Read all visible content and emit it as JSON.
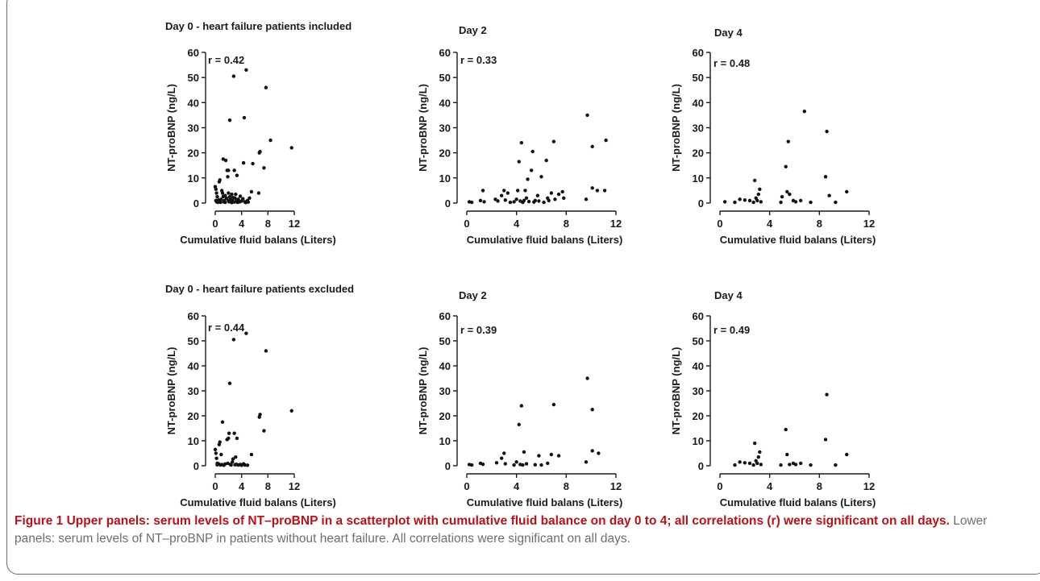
{
  "caption": {
    "figure_label": "Figure 1",
    "bold_text": "Upper panels: serum levels of NT–proBNP in a scatterplot with cumulative fluid balance on day 0 to 4; all correlations (r) were significant on all days.",
    "normal_text": "Lower panels: serum levels of NT–proBNP in patients without heart failure. All correlations were significant on all days."
  },
  "chart_data": [
    {
      "type": "scatter",
      "title": "Day 0 - heart failure patients included",
      "annotation": "r = 0.42",
      "xlabel": "Cumulative fluid balans  (Liters)",
      "ylabel": "NT-proBNP (ng/L)",
      "xlim": [
        0,
        12
      ],
      "ylim": [
        0,
        60
      ],
      "xticks": [
        0,
        4,
        8,
        12
      ],
      "yticks": [
        0,
        10,
        20,
        30,
        40,
        50,
        60
      ],
      "points": [
        [
          0,
          6.5
        ],
        [
          0.1,
          5.5
        ],
        [
          0.2,
          4
        ],
        [
          0.3,
          2.5
        ],
        [
          0.1,
          1
        ],
        [
          0.2,
          0.5
        ],
        [
          0.4,
          0.3
        ],
        [
          0.5,
          1.2
        ],
        [
          0.6,
          8.5
        ],
        [
          0.7,
          9.2
        ],
        [
          0.5,
          0.8
        ],
        [
          0.8,
          0.3
        ],
        [
          0.9,
          1.5
        ],
        [
          1,
          5
        ],
        [
          1.1,
          4
        ],
        [
          1.2,
          2.6
        ],
        [
          1.2,
          17.5
        ],
        [
          1.3,
          0.5
        ],
        [
          1.4,
          1
        ],
        [
          1.5,
          0.3
        ],
        [
          1.5,
          3
        ],
        [
          1.6,
          17
        ],
        [
          1.7,
          2
        ],
        [
          1.8,
          13
        ],
        [
          1.9,
          10.5
        ],
        [
          2,
          13
        ],
        [
          2,
          4
        ],
        [
          2,
          1
        ],
        [
          2.1,
          0.5
        ],
        [
          2.2,
          33
        ],
        [
          2.2,
          2.5
        ],
        [
          2.3,
          1.5
        ],
        [
          2.4,
          0.8
        ],
        [
          2.5,
          0.2
        ],
        [
          2.5,
          3.5
        ],
        [
          2.6,
          1
        ],
        [
          2.7,
          2.2
        ],
        [
          2.8,
          50.5
        ],
        [
          2.9,
          13
        ],
        [
          2.9,
          0.4
        ],
        [
          3,
          2
        ],
        [
          3.1,
          3.5
        ],
        [
          3.2,
          0.8
        ],
        [
          3.3,
          11
        ],
        [
          3.4,
          0.3
        ],
        [
          3.5,
          1.5
        ],
        [
          3.7,
          0.5
        ],
        [
          3.8,
          2.7
        ],
        [
          4,
          0.8
        ],
        [
          4.2,
          1.7
        ],
        [
          4.3,
          16
        ],
        [
          4.4,
          34
        ],
        [
          4.5,
          0.5
        ],
        [
          4.6,
          0.2
        ],
        [
          4.7,
          53
        ],
        [
          4.9,
          1
        ],
        [
          5,
          0.4
        ],
        [
          5.2,
          2
        ],
        [
          5.5,
          4.5
        ],
        [
          5.7,
          15.7
        ],
        [
          6.6,
          4
        ],
        [
          6.7,
          20
        ],
        [
          6.8,
          20.5
        ],
        [
          7.4,
          14
        ],
        [
          7.7,
          46
        ],
        [
          8.4,
          25
        ],
        [
          11.6,
          22
        ]
      ]
    },
    {
      "type": "scatter",
      "title": "Day 2",
      "annotation": "r = 0.33",
      "xlabel": "Cumulative fluid balans  (Liters)",
      "ylabel": "NT-proBNP (ng/L)",
      "xlim": [
        0,
        12
      ],
      "ylim": [
        0,
        60
      ],
      "xticks": [
        0,
        4,
        8,
        12
      ],
      "yticks": [
        0,
        10,
        20,
        30,
        40,
        50,
        60
      ],
      "points": [
        [
          0.2,
          0.5
        ],
        [
          0.4,
          0.3
        ],
        [
          1.1,
          1
        ],
        [
          1.3,
          5
        ],
        [
          1.4,
          0.5
        ],
        [
          2.3,
          1.5
        ],
        [
          2.5,
          0.8
        ],
        [
          2.8,
          3
        ],
        [
          3,
          5
        ],
        [
          3.1,
          1.2
        ],
        [
          3.3,
          4
        ],
        [
          3.5,
          0.3
        ],
        [
          3.8,
          0.5
        ],
        [
          4,
          1.5
        ],
        [
          4.1,
          5
        ],
        [
          4.2,
          16.5
        ],
        [
          4.3,
          0.8
        ],
        [
          4.4,
          24
        ],
        [
          4.5,
          0.3
        ],
        [
          4.6,
          1
        ],
        [
          4.7,
          5
        ],
        [
          4.8,
          2
        ],
        [
          4.9,
          9.5
        ],
        [
          5,
          0.6
        ],
        [
          5.2,
          13
        ],
        [
          5.3,
          20.5
        ],
        [
          5.4,
          0.4
        ],
        [
          5.5,
          1
        ],
        [
          5.7,
          3
        ],
        [
          5.8,
          0.8
        ],
        [
          6,
          10.5
        ],
        [
          6.2,
          0.3
        ],
        [
          6.4,
          17
        ],
        [
          6.5,
          2
        ],
        [
          6.6,
          1
        ],
        [
          6.8,
          4
        ],
        [
          7,
          24.5
        ],
        [
          7.1,
          1.5
        ],
        [
          7.4,
          3.5
        ],
        [
          7.7,
          4.5
        ],
        [
          7.8,
          2
        ],
        [
          9.6,
          1.5
        ],
        [
          9.7,
          35
        ],
        [
          10.1,
          6
        ],
        [
          10.1,
          22.5
        ],
        [
          10.5,
          5
        ],
        [
          11.1,
          5
        ],
        [
          11.2,
          25
        ]
      ]
    },
    {
      "type": "scatter",
      "title": "Day 4",
      "annotation": "r = 0.48",
      "xlabel": "Cumulative fluid balans  (Liters)",
      "ylabel": "NT-proBNP (ng/L)",
      "xlim": [
        0,
        12
      ],
      "ylim": [
        0,
        60
      ],
      "xticks": [
        0,
        4,
        8,
        12
      ],
      "yticks": [
        0,
        10,
        20,
        30,
        40,
        50,
        60
      ],
      "points": [
        [
          0.4,
          0.5
        ],
        [
          1.2,
          0.3
        ],
        [
          1.6,
          1.5
        ],
        [
          2,
          1.2
        ],
        [
          2.4,
          1
        ],
        [
          2.7,
          0.3
        ],
        [
          2.8,
          9
        ],
        [
          2.9,
          2
        ],
        [
          3,
          1
        ],
        [
          3.1,
          3.5
        ],
        [
          3.2,
          5.5
        ],
        [
          3.3,
          0.5
        ],
        [
          4.9,
          0.3
        ],
        [
          5,
          2.5
        ],
        [
          5.3,
          14.5
        ],
        [
          5.4,
          4.5
        ],
        [
          5.5,
          24.5
        ],
        [
          5.6,
          3.5
        ],
        [
          5.9,
          1
        ],
        [
          6.1,
          0.5
        ],
        [
          6.5,
          1
        ],
        [
          6.8,
          36.5
        ],
        [
          7.3,
          0.3
        ],
        [
          8.5,
          10.5
        ],
        [
          8.6,
          28.5
        ],
        [
          8.8,
          3
        ],
        [
          9.3,
          0.3
        ],
        [
          10.2,
          4.5
        ]
      ]
    },
    {
      "type": "scatter",
      "title": "Day 0 - heart failure patients excluded",
      "annotation": "r = 0.44",
      "xlabel": "Cumulative fluid balans  (Liters)",
      "ylabel": "NT-proBNP (ng/L)",
      "xlim": [
        0,
        12
      ],
      "ylim": [
        0,
        60
      ],
      "xticks": [
        0,
        4,
        8,
        12
      ],
      "yticks": [
        0,
        10,
        20,
        30,
        40,
        50,
        60
      ],
      "points": [
        [
          0,
          6.5
        ],
        [
          0.1,
          5
        ],
        [
          0.2,
          3
        ],
        [
          0.3,
          1
        ],
        [
          0.3,
          0.4
        ],
        [
          0.5,
          0.8
        ],
        [
          0.6,
          8.5
        ],
        [
          0.7,
          9.5
        ],
        [
          0.8,
          0.3
        ],
        [
          0.9,
          4.5
        ],
        [
          1,
          0.5
        ],
        [
          1.1,
          17.5
        ],
        [
          1.3,
          0.2
        ],
        [
          1.5,
          0.7
        ],
        [
          1.8,
          10.5
        ],
        [
          1.9,
          1
        ],
        [
          2,
          11
        ],
        [
          2.1,
          13
        ],
        [
          2.2,
          33
        ],
        [
          2.3,
          0.5
        ],
        [
          2.4,
          0.3
        ],
        [
          2.6,
          1.5
        ],
        [
          2.7,
          2.7
        ],
        [
          2.8,
          50.5
        ],
        [
          2.9,
          13
        ],
        [
          3,
          0.4
        ],
        [
          3.1,
          3.5
        ],
        [
          3.2,
          0.6
        ],
        [
          3.3,
          11
        ],
        [
          3.5,
          0.3
        ],
        [
          3.8,
          0.5
        ],
        [
          4,
          0.2
        ],
        [
          4.3,
          0.8
        ],
        [
          4.5,
          0.3
        ],
        [
          4.7,
          53
        ],
        [
          4.9,
          0.2
        ],
        [
          5.5,
          4.5
        ],
        [
          6.7,
          19.5
        ],
        [
          6.8,
          20.5
        ],
        [
          7.4,
          14
        ],
        [
          7.7,
          46
        ],
        [
          11.6,
          22
        ]
      ]
    },
    {
      "type": "scatter",
      "title": "Day 2",
      "annotation": "r = 0.39",
      "xlabel": "Cumulative fluid balans  (Liters)",
      "ylabel": "NT-proBNP (ng/L)",
      "xlim": [
        0,
        12
      ],
      "ylim": [
        0,
        60
      ],
      "xticks": [
        0,
        4,
        8,
        12
      ],
      "yticks": [
        0,
        10,
        20,
        30,
        40,
        50,
        60
      ],
      "points": [
        [
          0.2,
          0.5
        ],
        [
          0.4,
          0.3
        ],
        [
          1.1,
          1
        ],
        [
          1.3,
          0.6
        ],
        [
          2.4,
          1.2
        ],
        [
          2.8,
          3
        ],
        [
          3,
          5
        ],
        [
          3.1,
          0.8
        ],
        [
          3.8,
          0.3
        ],
        [
          4,
          1.5
        ],
        [
          4.2,
          16.5
        ],
        [
          4.3,
          0.5
        ],
        [
          4.4,
          24
        ],
        [
          4.5,
          0.3
        ],
        [
          4.6,
          5.5
        ],
        [
          4.8,
          0.8
        ],
        [
          5.5,
          0.4
        ],
        [
          5.8,
          4
        ],
        [
          6,
          0.3
        ],
        [
          6.5,
          1
        ],
        [
          6.8,
          4.5
        ],
        [
          7,
          24.5
        ],
        [
          7.4,
          4
        ],
        [
          9.6,
          1.5
        ],
        [
          9.7,
          35
        ],
        [
          10.1,
          6
        ],
        [
          10.1,
          22.5
        ],
        [
          10.6,
          5
        ]
      ]
    },
    {
      "type": "scatter",
      "title": "Day 4",
      "annotation": "r = 0.49",
      "xlabel": "Cumulative fluid balans  (Liters)",
      "ylabel": "NT-proBNP (ng/L)",
      "xlim": [
        0,
        12
      ],
      "ylim": [
        0,
        60
      ],
      "xticks": [
        0,
        4,
        8,
        12
      ],
      "yticks": [
        0,
        10,
        20,
        30,
        40,
        50,
        60
      ],
      "points": [
        [
          1.2,
          0.3
        ],
        [
          1.6,
          1.5
        ],
        [
          2,
          1.2
        ],
        [
          2.4,
          1
        ],
        [
          2.7,
          0.3
        ],
        [
          2.8,
          9
        ],
        [
          2.9,
          2
        ],
        [
          3,
          1
        ],
        [
          3.1,
          3.5
        ],
        [
          3.2,
          5.5
        ],
        [
          3.3,
          0.5
        ],
        [
          4.9,
          0.3
        ],
        [
          5.3,
          14.5
        ],
        [
          5.4,
          4.5
        ],
        [
          5.6,
          0.5
        ],
        [
          5.9,
          1
        ],
        [
          6.1,
          0.5
        ],
        [
          6.5,
          1
        ],
        [
          7.3,
          0.3
        ],
        [
          8.5,
          10.5
        ],
        [
          8.6,
          28.5
        ],
        [
          9.3,
          0.3
        ],
        [
          10.2,
          4.5
        ]
      ]
    }
  ]
}
